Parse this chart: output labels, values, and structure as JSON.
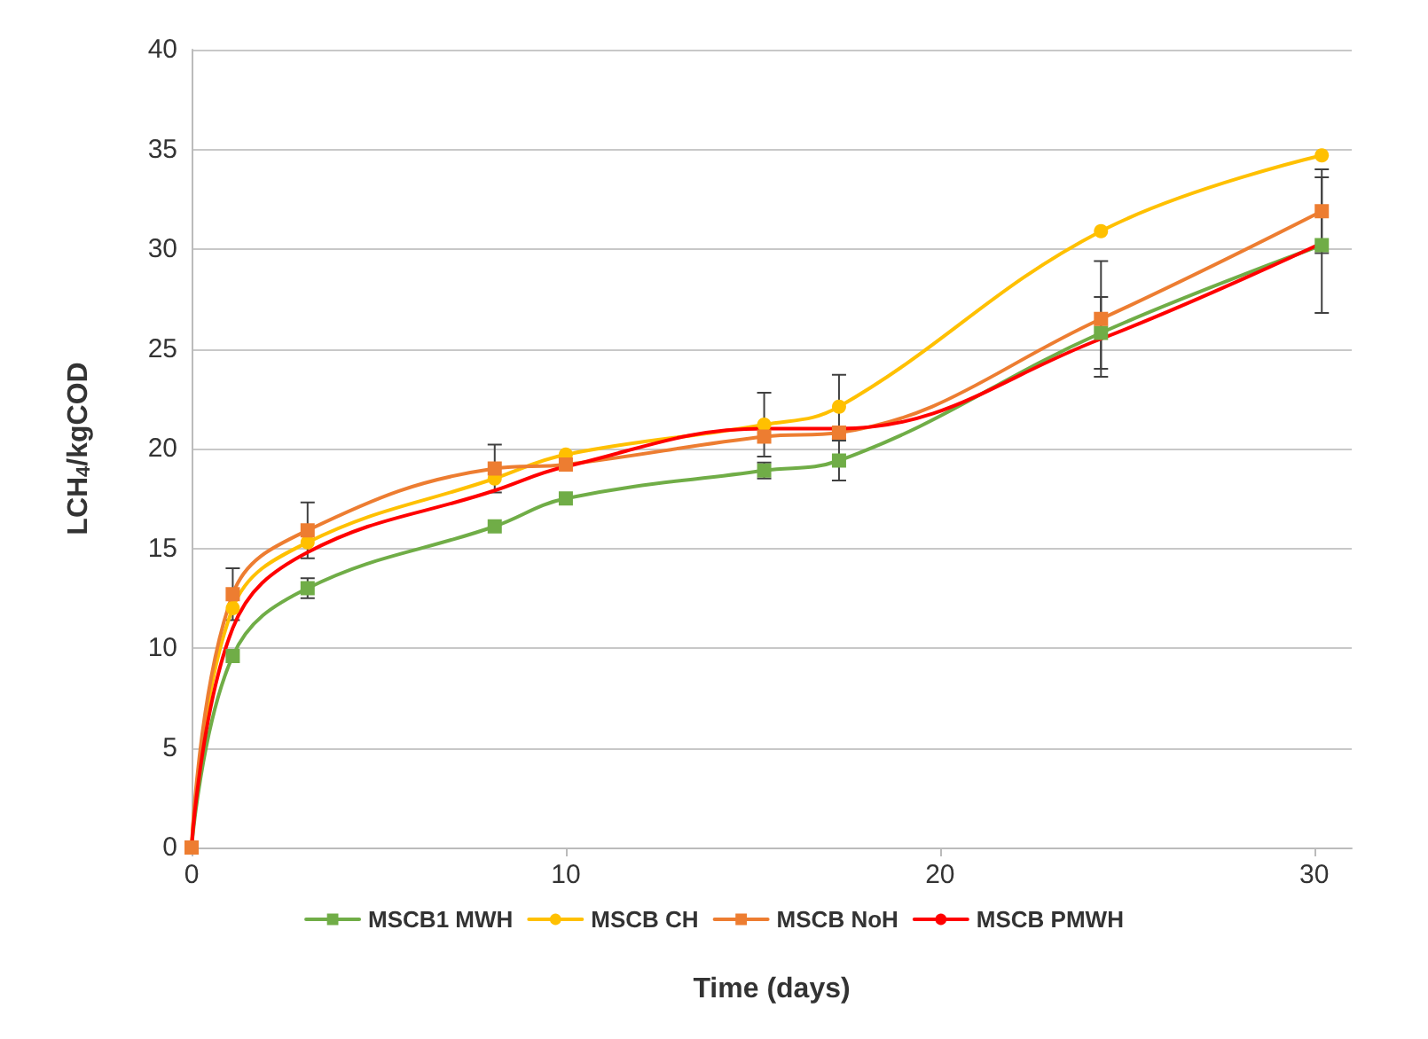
{
  "chart_data": {
    "type": "line",
    "xlabel": "Time (days)",
    "ylabel": "LCH$_{4}$/kgCOD",
    "x": [
      0,
      1.1,
      3.1,
      8.1,
      10,
      15.3,
      17.3,
      24.3,
      30.2
    ],
    "series": [
      {
        "name": "MSCB1 MWH",
        "color": "#70ad47",
        "marker": "square",
        "values": [
          0,
          9.6,
          13.0,
          16.1,
          17.5,
          18.9,
          19.4,
          25.8,
          30.2
        ],
        "errors": [
          null,
          null,
          0.5,
          null,
          null,
          0.4,
          1.0,
          1.8,
          3.4
        ]
      },
      {
        "name": "MSCB CH",
        "color": "#ffc000",
        "marker": "circle",
        "values": [
          0,
          12.0,
          15.3,
          18.5,
          19.7,
          21.2,
          22.1,
          30.9,
          34.7
        ],
        "errors": [
          null,
          null,
          null,
          null,
          null,
          1.6,
          1.6,
          null,
          null
        ]
      },
      {
        "name": "MSCB NoH",
        "color": "#ed7d31",
        "marker": "square",
        "values": [
          0,
          12.7,
          15.9,
          19.0,
          19.2,
          20.6,
          20.8,
          26.5,
          31.9
        ],
        "errors": [
          null,
          1.3,
          1.4,
          1.2,
          null,
          null,
          null,
          2.9,
          2.1
        ]
      },
      {
        "name": "MSCB PMWH",
        "color": "#ff0000",
        "marker": "none",
        "values": [
          0,
          11.0,
          14.8,
          17.9,
          19.1,
          21.0,
          21.0,
          25.5,
          30.3
        ]
      }
    ],
    "xlim": [
      0,
      31
    ],
    "xticks": [
      0,
      10,
      20,
      30
    ],
    "ylim": [
      0,
      40
    ],
    "yticks": [
      0,
      5,
      10,
      15,
      20,
      25,
      30,
      35,
      40
    ],
    "grid": "y",
    "legend": "bottom"
  }
}
